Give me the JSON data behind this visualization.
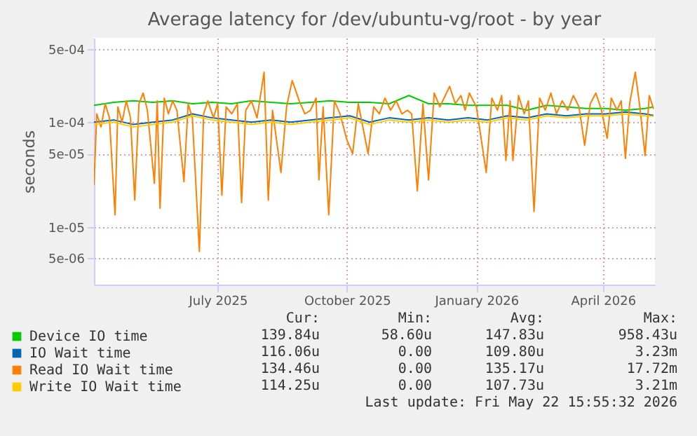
{
  "chart_data": {
    "type": "line",
    "title": "Average latency for /dev/ubuntu-vg/root - by year",
    "ylabel": "seconds",
    "log": true,
    "grid": true,
    "legend": "bottom left",
    "xlim": [
      "2025-04-19",
      "2026-05-23"
    ],
    "xticks": [
      {
        "value": "2025-07-16",
        "label": "July 2025"
      },
      {
        "value": "2025-10-16",
        "label": "October 2025"
      },
      {
        "value": "2026-01-16",
        "label": "January 2026"
      },
      {
        "value": "2026-04-16",
        "label": "April 2026"
      }
    ],
    "ylim": [
      2.8e-06,
      0.00064
    ],
    "yticks": [
      {
        "value": 5e-06,
        "label": "5e-06"
      },
      {
        "value": 1e-05,
        "label": "1e-05"
      },
      {
        "value": 5e-05,
        "label": "5e-05"
      },
      {
        "value": 0.0001,
        "label": "1e-04"
      },
      {
        "value": 0.0005,
        "label": "5e-04"
      }
    ],
    "annotations": [
      "Cur:",
      "Min:",
      "Avg:",
      "Max:",
      "139.84u",
      "58.60u",
      "147.83u",
      "958.43u",
      "116.06u",
      "0.00",
      "109.80u",
      "3.23m",
      "134.46u",
      "0.00",
      "135.17u",
      "17.72m",
      "114.25u",
      "0.00",
      "107.73u",
      "3.21m",
      "Last update: Fri May 22 15:55:32 2026"
    ],
    "series": [
      {
        "name": "Device IO time",
        "color": "#00cc00",
        "x": [
          "2025-04-19",
          "2025-05-03",
          "2025-05-17",
          "2025-05-31",
          "2025-06-14",
          "2025-06-28",
          "2025-07-12",
          "2025-07-26",
          "2025-08-09",
          "2025-08-23",
          "2025-09-06",
          "2025-09-20",
          "2025-10-04",
          "2025-10-18",
          "2025-11-01",
          "2025-11-15",
          "2025-11-29",
          "2025-12-13",
          "2025-12-27",
          "2026-01-10",
          "2026-01-24",
          "2026-02-07",
          "2026-02-21",
          "2026-03-07",
          "2026-03-21",
          "2026-04-04",
          "2026-04-18",
          "2026-05-02",
          "2026-05-16",
          "2026-05-22"
        ],
        "values": [
          0.000145,
          0.000155,
          0.00016,
          0.000155,
          0.00016,
          0.00015,
          0.000155,
          0.00015,
          0.00016,
          0.000155,
          0.00015,
          0.000155,
          0.00016,
          0.000155,
          0.000155,
          0.00015,
          0.00018,
          0.00015,
          0.00015,
          0.000145,
          0.000145,
          0.000145,
          0.00013,
          0.000145,
          0.00014,
          0.000135,
          0.000135,
          0.00013,
          0.000135,
          0.00014
        ]
      },
      {
        "name": "IO Wait time",
        "color": "#0066b3",
        "x": [
          "2025-04-19",
          "2025-05-03",
          "2025-05-17",
          "2025-05-31",
          "2025-06-14",
          "2025-06-28",
          "2025-07-12",
          "2025-07-26",
          "2025-08-09",
          "2025-08-23",
          "2025-09-06",
          "2025-09-20",
          "2025-10-04",
          "2025-10-18",
          "2025-11-01",
          "2025-11-15",
          "2025-11-29",
          "2025-12-13",
          "2025-12-27",
          "2026-01-10",
          "2026-01-24",
          "2026-02-07",
          "2026-02-21",
          "2026-03-07",
          "2026-03-21",
          "2026-04-04",
          "2026-04-18",
          "2026-05-02",
          "2026-05-16",
          "2026-05-22"
        ],
        "values": [
          0.0001,
          0.000105,
          9.5e-05,
          0.0001,
          0.000105,
          0.00012,
          0.00011,
          0.000105,
          0.0001,
          0.000105,
          0.0001,
          0.000105,
          0.00011,
          0.000115,
          0.0001,
          0.00011,
          0.000105,
          0.00011,
          0.000105,
          0.00011,
          0.000105,
          0.000115,
          0.00011,
          0.00012,
          0.000115,
          0.00012,
          0.00012,
          0.000125,
          0.00012,
          0.000116
        ]
      },
      {
        "name": "Read IO Wait time",
        "color": "#ff8000",
        "x": [
          "2025-04-19",
          "2025-04-21",
          "2025-04-24",
          "2025-04-27",
          "2025-04-30",
          "2025-05-04",
          "2025-05-06",
          "2025-05-09",
          "2025-05-12",
          "2025-05-15",
          "2025-05-18",
          "2025-05-21",
          "2025-05-24",
          "2025-05-27",
          "2025-06-01",
          "2025-06-03",
          "2025-06-05",
          "2025-06-08",
          "2025-06-11",
          "2025-06-14",
          "2025-06-17",
          "2025-06-22",
          "2025-06-25",
          "2025-06-28",
          "2025-07-03",
          "2025-07-06",
          "2025-07-09",
          "2025-07-13",
          "2025-07-16",
          "2025-07-19",
          "2025-07-22",
          "2025-07-26",
          "2025-07-30",
          "2025-08-02",
          "2025-08-05",
          "2025-08-09",
          "2025-08-13",
          "2025-08-18",
          "2025-08-21",
          "2025-08-24",
          "2025-08-30",
          "2025-09-03",
          "2025-09-07",
          "2025-09-12",
          "2025-09-16",
          "2025-09-20",
          "2025-09-24",
          "2025-09-26",
          "2025-09-29",
          "2025-10-03",
          "2025-10-07",
          "2025-10-11",
          "2025-10-16",
          "2025-10-20",
          "2025-10-24",
          "2025-10-31",
          "2025-11-04",
          "2025-11-08",
          "2025-11-12",
          "2025-11-16",
          "2025-11-20",
          "2025-11-24",
          "2025-11-28",
          "2025-12-01",
          "2025-12-05",
          "2025-12-09",
          "2025-12-13",
          "2025-12-17",
          "2025-12-21",
          "2025-12-28",
          "2026-01-01",
          "2026-01-05",
          "2026-01-08",
          "2026-01-11",
          "2026-01-16",
          "2026-01-23",
          "2026-01-27",
          "2026-01-31",
          "2026-02-03",
          "2026-02-06",
          "2026-02-09",
          "2026-02-11",
          "2026-02-15",
          "2026-02-19",
          "2026-02-22",
          "2026-02-26",
          "2026-03-02",
          "2026-03-06",
          "2026-03-10",
          "2026-03-14",
          "2026-03-18",
          "2026-03-22",
          "2026-03-26",
          "2026-03-30",
          "2026-04-03",
          "2026-04-07",
          "2026-04-11",
          "2026-04-15",
          "2026-04-19",
          "2026-04-22",
          "2026-04-26",
          "2026-04-29",
          "2026-05-02",
          "2026-05-05",
          "2026-05-09",
          "2026-05-12",
          "2026-05-16",
          "2026-05-19",
          "2026-05-22"
        ],
        "values": [
          2.5e-05,
          0.00012,
          9e-05,
          0.00015,
          0.00011,
          1.3e-05,
          0.00014,
          0.0001,
          0.00016,
          0.00011,
          1.8e-05,
          0.00015,
          0.00019,
          0.00013,
          2.6e-05,
          0.00016,
          1.5e-05,
          0.00017,
          0.00012,
          0.00016,
          0.00013,
          2.7e-05,
          0.00015,
          0.00011,
          5.8e-06,
          0.00012,
          0.00016,
          0.00011,
          0.00015,
          2e-05,
          0.00014,
          0.00012,
          0.00015,
          1.7e-05,
          0.00013,
          0.00016,
          0.00011,
          0.0003,
          1.8e-05,
          0.00013,
          3.3e-05,
          0.00014,
          0.00025,
          0.00016,
          0.00012,
          0.00013,
          0.00017,
          2.8e-05,
          0.00014,
          1.3e-05,
          0.00016,
          0.00012,
          6.7e-05,
          5e-05,
          0.00015,
          5e-05,
          0.00014,
          0.00012,
          0.00017,
          0.00013,
          0.00016,
          0.00012,
          0.00013,
          0.00012,
          2.2e-05,
          0.00015,
          2.8e-05,
          0.00019,
          0.00014,
          0.00022,
          0.00015,
          0.00018,
          0.00013,
          0.00019,
          0.00014,
          3.3e-05,
          0.00017,
          0.00013,
          0.00018,
          4.3e-05,
          0.00016,
          4.3e-05,
          0.00018,
          0.00012,
          0.00016,
          1.4e-05,
          0.00017,
          0.00013,
          0.00019,
          0.00012,
          0.00016,
          0.00013,
          0.00018,
          0.00014,
          6e-05,
          0.00015,
          0.00019,
          0.00013,
          7e-05,
          0.00017,
          0.00013,
          0.00016,
          4.5e-05,
          0.00015,
          0.0003,
          0.00015,
          4.8e-05,
          0.00018,
          0.000134
        ]
      },
      {
        "name": "Write IO Wait time",
        "color": "#ffcc00",
        "x": [
          "2025-04-19",
          "2025-05-03",
          "2025-05-17",
          "2025-05-31",
          "2025-06-14",
          "2025-06-28",
          "2025-07-12",
          "2025-07-26",
          "2025-08-09",
          "2025-08-23",
          "2025-09-06",
          "2025-09-20",
          "2025-10-04",
          "2025-10-18",
          "2025-11-01",
          "2025-11-15",
          "2025-11-29",
          "2025-12-13",
          "2025-12-27",
          "2026-01-10",
          "2026-01-24",
          "2026-02-07",
          "2026-02-21",
          "2026-03-07",
          "2026-03-21",
          "2026-04-04",
          "2026-04-18",
          "2026-05-02",
          "2026-05-16",
          "2026-05-22"
        ],
        "values": [
          9.5e-05,
          0.0001,
          9e-05,
          9.5e-05,
          0.0001,
          0.000115,
          0.000105,
          0.0001,
          9.5e-05,
          0.0001,
          9.5e-05,
          0.0001,
          0.000105,
          0.00011,
          9.5e-05,
          0.000105,
          0.0001,
          0.000105,
          0.0001,
          0.000105,
          0.0001,
          0.00011,
          0.000105,
          0.000115,
          0.00011,
          0.000115,
          0.000115,
          0.00012,
          0.000115,
          0.000114
        ]
      }
    ]
  }
}
